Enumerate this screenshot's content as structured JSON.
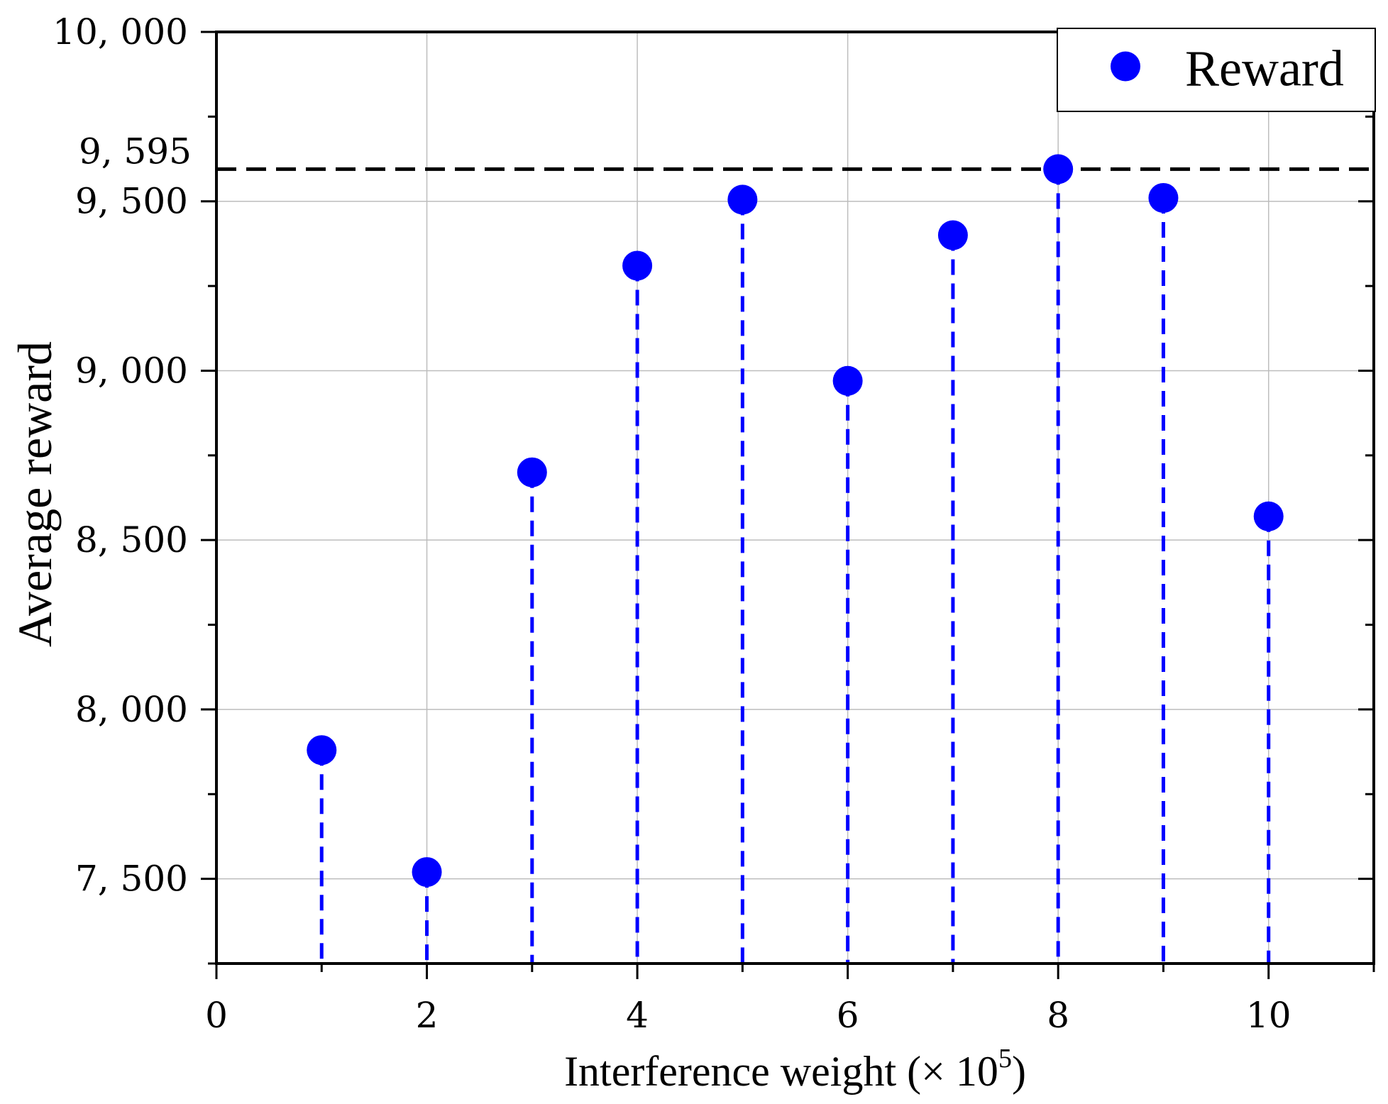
{
  "chart_data": {
    "type": "scatter",
    "title": "",
    "xlabel": "Interference weight (× 10",
    "xlabel_exponent": "5",
    "xlabel_close": ")",
    "ylabel": "Average reward",
    "xlim": [
      0,
      11
    ],
    "ylim": [
      7250,
      10000
    ],
    "grid": true,
    "x_ticks": [
      0,
      2,
      4,
      6,
      8,
      10
    ],
    "x_tick_labels": [
      "0",
      "2",
      "4",
      "6",
      "8",
      "10"
    ],
    "y_ticks": [
      7500,
      8000,
      8500,
      9000,
      9500,
      10000
    ],
    "y_tick_labels": [
      "7, 500",
      "8, 000",
      "8, 500",
      "9, 000",
      "9, 500",
      "10, 000"
    ],
    "reference_line": {
      "value": 9595,
      "label": "9, 595",
      "style": "dashed",
      "color": "#000000"
    },
    "legend": {
      "position": "top-right",
      "entries": [
        "Reward"
      ]
    },
    "series": [
      {
        "name": "Reward",
        "color": "#0000ff",
        "marker": "circle",
        "stems": "dashed",
        "x": [
          1,
          2,
          3,
          4,
          5,
          6,
          7,
          8,
          9,
          10
        ],
        "y": [
          7880,
          7520,
          8700,
          9310,
          9505,
          8970,
          9400,
          9595,
          9510,
          8570
        ]
      }
    ]
  }
}
